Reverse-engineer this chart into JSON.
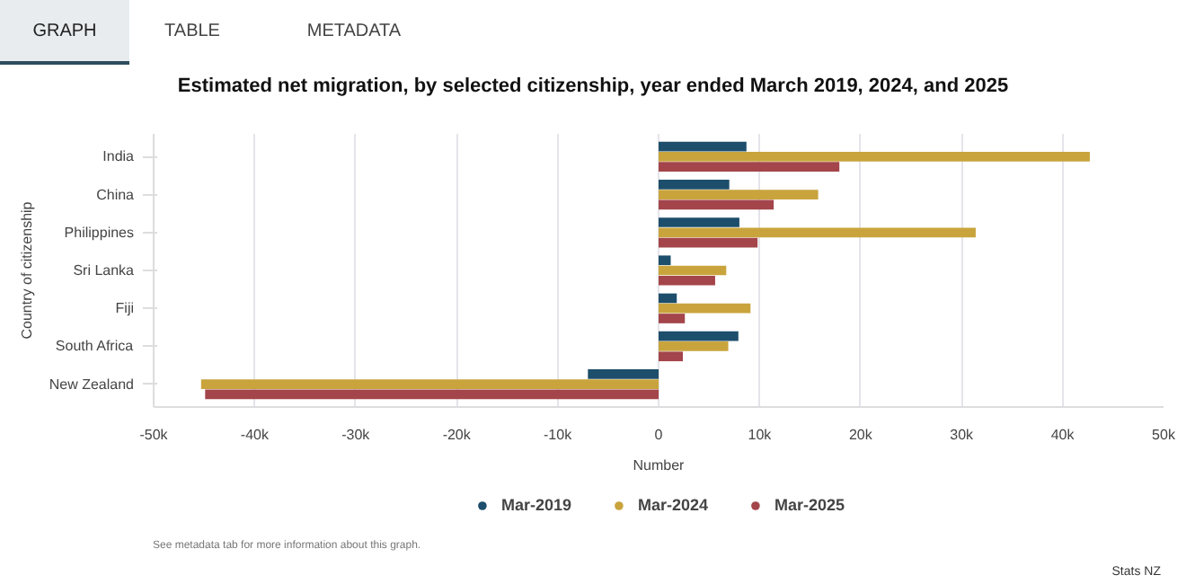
{
  "chart_data": {
    "type": "bar",
    "orientation": "horizontal",
    "title": "Estimated net migration, by selected citizenship, year ended March 2019, 2024, and 2025",
    "xlabel": "Number",
    "ylabel": "Country of citizenship",
    "categories": [
      "India",
      "China",
      "Philippines",
      "Sri Lanka",
      "Fiji",
      "South Africa",
      "New Zealand"
    ],
    "series": [
      {
        "name": "Mar-2019",
        "color": "#1d4e6b",
        "values": [
          8700,
          7000,
          8000,
          1200,
          1800,
          7900,
          -7000
        ]
      },
      {
        "name": "Mar-2024",
        "color": "#c9a43d",
        "values": [
          42700,
          15800,
          31400,
          6700,
          9100,
          6900,
          -45300
        ]
      },
      {
        "name": "Mar-2025",
        "color": "#a3454a",
        "values": [
          17900,
          11400,
          9800,
          5600,
          2600,
          2400,
          -44900
        ]
      }
    ],
    "xlim": [
      -50000,
      50000
    ],
    "xticks": [
      {
        "value": -50000,
        "label": "-50k"
      },
      {
        "value": -40000,
        "label": "-40k"
      },
      {
        "value": -30000,
        "label": "-30k"
      },
      {
        "value": -20000,
        "label": "-20k"
      },
      {
        "value": -10000,
        "label": "-10k"
      },
      {
        "value": 0,
        "label": "0"
      },
      {
        "value": 10000,
        "label": "10k"
      },
      {
        "value": 20000,
        "label": "20k"
      },
      {
        "value": 30000,
        "label": "30k"
      },
      {
        "value": 40000,
        "label": "40k"
      },
      {
        "value": 50000,
        "label": "50k"
      }
    ],
    "grid": "x",
    "legend": "bottom",
    "annotations": [
      "GRAPH",
      "TABLE",
      "METADATA",
      "See metadata tab for more information about this graph.",
      "Stats NZ"
    ]
  }
}
